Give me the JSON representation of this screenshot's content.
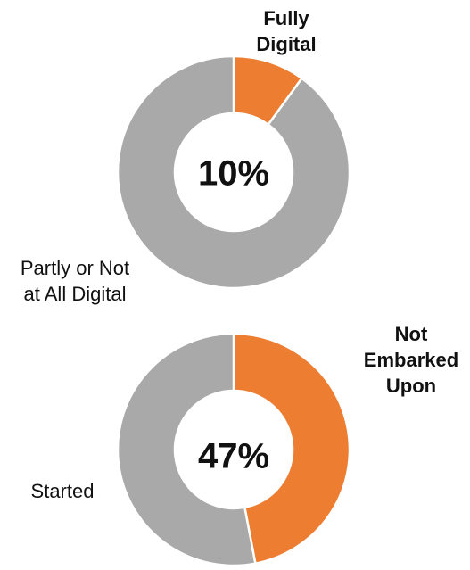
{
  "colors": {
    "accent": "#ED7D31",
    "neutral": "#A9A9A9",
    "divider": "#FFFFFF"
  },
  "chart_data": [
    {
      "type": "pie",
      "variant": "donut",
      "slices": [
        {
          "label": "Fully Digital",
          "value": 10,
          "color": "#ED7D31"
        },
        {
          "label": "Partly or Not at All Digital",
          "value": 90,
          "color": "#A9A9A9"
        }
      ],
      "center_label": "10%",
      "callouts": {
        "highlight": [
          "Fully",
          "Digital"
        ],
        "other": [
          "Partly or Not",
          "at All Digital"
        ]
      }
    },
    {
      "type": "pie",
      "variant": "donut",
      "slices": [
        {
          "label": "Not Embarked Upon",
          "value": 47,
          "color": "#ED7D31"
        },
        {
          "label": "Started",
          "value": 53,
          "color": "#A9A9A9"
        }
      ],
      "center_label": "47%",
      "callouts": {
        "highlight": [
          "Not",
          "Embarked",
          "Upon"
        ],
        "other": [
          "Started"
        ]
      }
    }
  ]
}
